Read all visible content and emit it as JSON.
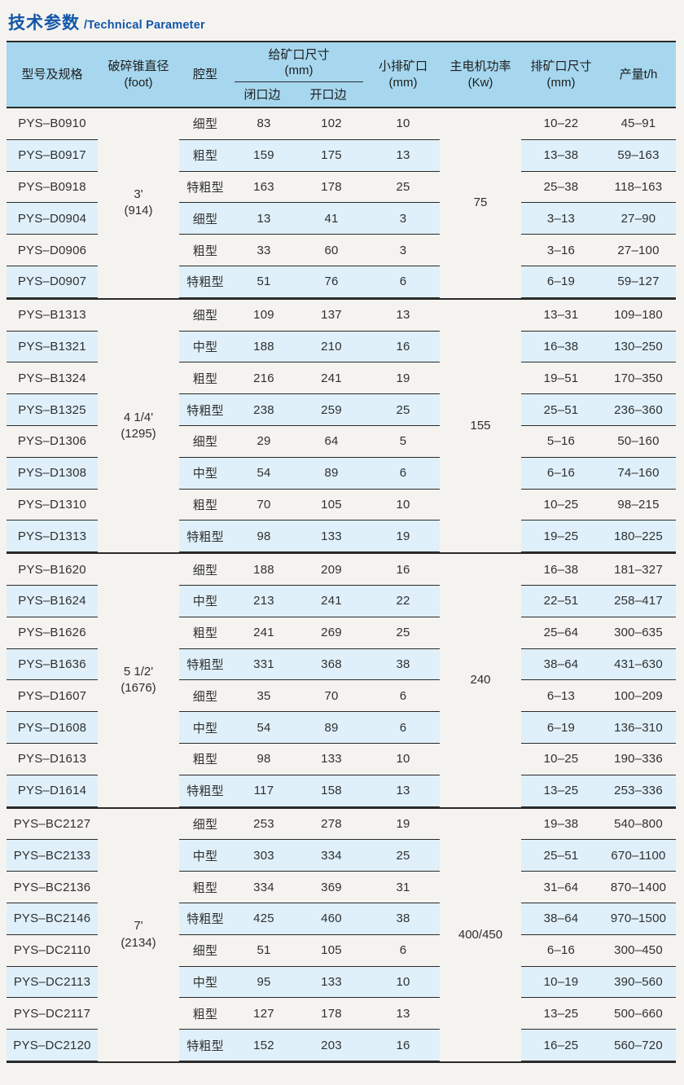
{
  "title": {
    "zh": "技术参数",
    "en": "/Technical Parameter"
  },
  "colors": {
    "accent_blue": "#1257a9",
    "header_bg": "#a6d7ee",
    "stripe_bg": "#dff0fa",
    "rule_line": "#2a2a2a",
    "page_bg": "#f5f3f0"
  },
  "header": {
    "model": "型号及规格",
    "cone": {
      "line1": "破碎锥直径",
      "line2": "(foot)"
    },
    "cavity": "腔型",
    "feed": {
      "line1": "给矿口尺寸",
      "line2": "(mm)",
      "closed": "闭口边",
      "open": "开口边"
    },
    "min_discharge": {
      "line1": "小排矿口",
      "line2": "(mm)"
    },
    "power": {
      "line1": "主电机功率",
      "line2": "(Kw)"
    },
    "discharge": {
      "line1": "排矿口尺寸",
      "line2": "(mm)"
    },
    "capacity": "产量t/h"
  },
  "table": {
    "groups": [
      {
        "cone_feet": "3'",
        "cone_mm": "(914)",
        "power": "75",
        "rows": [
          {
            "model": "PYS–B0910",
            "cavity": "细型",
            "closed": "83",
            "open": "102",
            "min_discharge": "10",
            "discharge": "10–22",
            "capacity": "45–91"
          },
          {
            "model": "PYS–B0917",
            "cavity": "粗型",
            "closed": "159",
            "open": "175",
            "min_discharge": "13",
            "discharge": "13–38",
            "capacity": "59–163"
          },
          {
            "model": "PYS–B0918",
            "cavity": "特粗型",
            "closed": "163",
            "open": "178",
            "min_discharge": "25",
            "discharge": "25–38",
            "capacity": "118–163"
          },
          {
            "model": "PYS–D0904",
            "cavity": "细型",
            "closed": "13",
            "open": "41",
            "min_discharge": "3",
            "discharge": "3–13",
            "capacity": "27–90"
          },
          {
            "model": "PYS–D0906",
            "cavity": "粗型",
            "closed": "33",
            "open": "60",
            "min_discharge": "3",
            "discharge": "3–16",
            "capacity": "27–100"
          },
          {
            "model": "PYS–D0907",
            "cavity": "特粗型",
            "closed": "51",
            "open": "76",
            "min_discharge": "6",
            "discharge": "6–19",
            "capacity": "59–127"
          }
        ]
      },
      {
        "cone_feet": "4 1/4'",
        "cone_mm": "(1295)",
        "power": "155",
        "rows": [
          {
            "model": "PYS–B1313",
            "cavity": "细型",
            "closed": "109",
            "open": "137",
            "min_discharge": "13",
            "discharge": "13–31",
            "capacity": "109–180"
          },
          {
            "model": "PYS–B1321",
            "cavity": "中型",
            "closed": "188",
            "open": "210",
            "min_discharge": "16",
            "discharge": "16–38",
            "capacity": "130–250"
          },
          {
            "model": "PYS–B1324",
            "cavity": "粗型",
            "closed": "216",
            "open": "241",
            "min_discharge": "19",
            "discharge": "19–51",
            "capacity": "170–350"
          },
          {
            "model": "PYS–B1325",
            "cavity": "特粗型",
            "closed": "238",
            "open": "259",
            "min_discharge": "25",
            "discharge": "25–51",
            "capacity": "236–360"
          },
          {
            "model": "PYS–D1306",
            "cavity": "细型",
            "closed": "29",
            "open": "64",
            "min_discharge": "5",
            "discharge": "5–16",
            "capacity": "50–160"
          },
          {
            "model": "PYS–D1308",
            "cavity": "中型",
            "closed": "54",
            "open": "89",
            "min_discharge": "6",
            "discharge": "6–16",
            "capacity": "74–160"
          },
          {
            "model": "PYS–D1310",
            "cavity": "粗型",
            "closed": "70",
            "open": "105",
            "min_discharge": "10",
            "discharge": "10–25",
            "capacity": "98–215"
          },
          {
            "model": "PYS–D1313",
            "cavity": "特粗型",
            "closed": "98",
            "open": "133",
            "min_discharge": "19",
            "discharge": "19–25",
            "capacity": "180–225"
          }
        ]
      },
      {
        "cone_feet": "5 1/2'",
        "cone_mm": "(1676)",
        "power": "240",
        "rows": [
          {
            "model": "PYS–B1620",
            "cavity": "细型",
            "closed": "188",
            "open": "209",
            "min_discharge": "16",
            "discharge": "16–38",
            "capacity": "181–327"
          },
          {
            "model": "PYS–B1624",
            "cavity": "中型",
            "closed": "213",
            "open": "241",
            "min_discharge": "22",
            "discharge": "22–51",
            "capacity": "258–417"
          },
          {
            "model": "PYS–B1626",
            "cavity": "粗型",
            "closed": "241",
            "open": "269",
            "min_discharge": "25",
            "discharge": "25–64",
            "capacity": "300–635"
          },
          {
            "model": "PYS–B1636",
            "cavity": "特粗型",
            "closed": "331",
            "open": "368",
            "min_discharge": "38",
            "discharge": "38–64",
            "capacity": "431–630"
          },
          {
            "model": "PYS–D1607",
            "cavity": "细型",
            "closed": "35",
            "open": "70",
            "min_discharge": "6",
            "discharge": "6–13",
            "capacity": "100–209"
          },
          {
            "model": "PYS–D1608",
            "cavity": "中型",
            "closed": "54",
            "open": "89",
            "min_discharge": "6",
            "discharge": "6–19",
            "capacity": "136–310"
          },
          {
            "model": "PYS–D1613",
            "cavity": "粗型",
            "closed": "98",
            "open": "133",
            "min_discharge": "10",
            "discharge": "10–25",
            "capacity": "190–336"
          },
          {
            "model": "PYS–D1614",
            "cavity": "特粗型",
            "closed": "117",
            "open": "158",
            "min_discharge": "13",
            "discharge": "13–25",
            "capacity": "253–336"
          }
        ]
      },
      {
        "cone_feet": "7'",
        "cone_mm": "(2134)",
        "power": "400/450",
        "rows": [
          {
            "model": "PYS–BC2127",
            "cavity": "细型",
            "closed": "253",
            "open": "278",
            "min_discharge": "19",
            "discharge": "19–38",
            "capacity": "540–800"
          },
          {
            "model": "PYS–BC2133",
            "cavity": "中型",
            "closed": "303",
            "open": "334",
            "min_discharge": "25",
            "discharge": "25–51",
            "capacity": "670–1100"
          },
          {
            "model": "PYS–BC2136",
            "cavity": "粗型",
            "closed": "334",
            "open": "369",
            "min_discharge": "31",
            "discharge": "31–64",
            "capacity": "870–1400"
          },
          {
            "model": "PYS–BC2146",
            "cavity": "特粗型",
            "closed": "425",
            "open": "460",
            "min_discharge": "38",
            "discharge": "38–64",
            "capacity": "970–1500"
          },
          {
            "model": "PYS–DC2110",
            "cavity": "细型",
            "closed": "51",
            "open": "105",
            "min_discharge": "6",
            "discharge": "6–16",
            "capacity": "300–450"
          },
          {
            "model": "PYS–DC2113",
            "cavity": "中型",
            "closed": "95",
            "open": "133",
            "min_discharge": "10",
            "discharge": "10–19",
            "capacity": "390–560"
          },
          {
            "model": "PYS–DC2117",
            "cavity": "粗型",
            "closed": "127",
            "open": "178",
            "min_discharge": "13",
            "discharge": "13–25",
            "capacity": "500–660"
          },
          {
            "model": "PYS–DC2120",
            "cavity": "特粗型",
            "closed": "152",
            "open": "203",
            "min_discharge": "16",
            "discharge": "16–25",
            "capacity": "560–720"
          }
        ]
      }
    ]
  }
}
